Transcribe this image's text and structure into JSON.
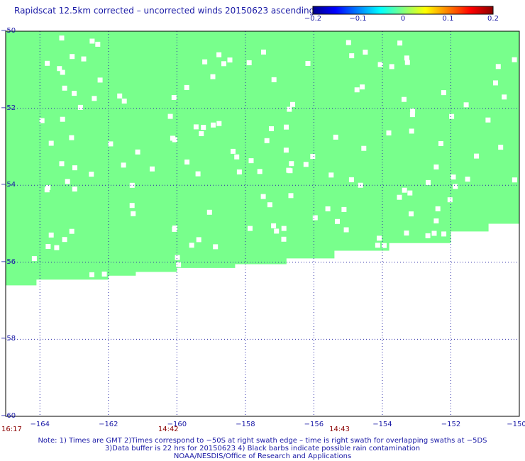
{
  "title": "Rapidscat 12.5km corrected – uncorrected winds 20150623 ascending",
  "colorbar": {
    "stops": [
      "#00008b",
      "#0000ff",
      "#0080ff",
      "#00ffff",
      "#80ff80",
      "#ffff00",
      "#ff8000",
      "#ff0000",
      "#8b0000"
    ],
    "ticks": [
      {
        "value": -0.2,
        "label": "−0.2"
      },
      {
        "value": -0.1,
        "label": "−0.1"
      },
      {
        "value": 0,
        "label": "0"
      },
      {
        "value": 0.1,
        "label": "0.1"
      },
      {
        "value": 0.2,
        "label": "0.2"
      }
    ]
  },
  "axes": {
    "lat_labels": [
      "−50",
      "−52",
      "−54",
      "−56",
      "−58",
      "−60"
    ],
    "lon_labels": [
      "−164",
      "−162",
      "−160",
      "−158",
      "−156",
      "−154",
      "−152",
      "−150"
    ]
  },
  "time_labels": [
    "16:17",
    "14:42",
    "14:43"
  ],
  "notes": [
    "Note: 1) Times are GMT 2)Times correspond to −50S at right swath edge – time is right swath for overlapping swaths at −5DS",
    "3)Data buffer is 22 hrs for 20150623 4) Black barbs indicate possible rain contamination",
    "NOAA/NESDIS/Office of Research and Applications"
  ],
  "colors": {
    "field": "#78ff8c",
    "text": "#1a1aa6",
    "time": "#8b0000",
    "grid": "#2a2aa8",
    "frame": "#000000",
    "gap": "#ffffff"
  },
  "swath_value": 0
}
